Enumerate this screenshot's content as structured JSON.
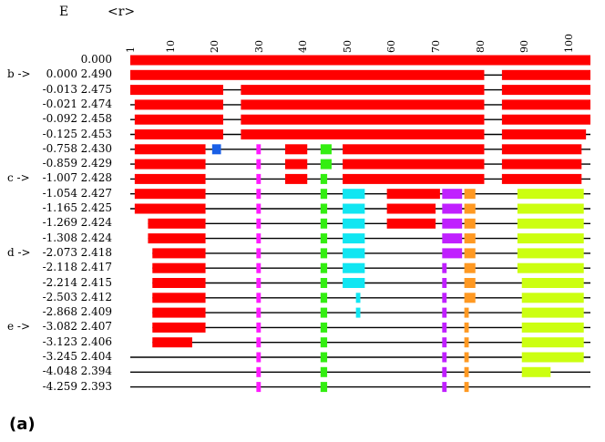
{
  "header": {
    "e_label": "E",
    "r_label": "<r>"
  },
  "axis": {
    "min": 1,
    "max": 105,
    "ticks": [
      1,
      10,
      20,
      30,
      40,
      50,
      60,
      70,
      80,
      90,
      100
    ]
  },
  "panel_label": "(a)",
  "colors": {
    "red": "#ff0000",
    "blue": "#1a5fe6",
    "magenta": "#ff1aff",
    "green": "#33ee11",
    "cyan": "#11e6f2",
    "purple": "#c020ff",
    "orange": "#ff9922",
    "lime": "#ccff11",
    "line": "#000000"
  },
  "rows": [
    {
      "marker": "",
      "energy": "",
      "r": "0.000",
      "line": [
        1,
        105
      ],
      "segs": [
        [
          1,
          105,
          "red"
        ]
      ]
    },
    {
      "marker": "b ->",
      "energy": "0.000",
      "r": "2.490",
      "line": [
        1,
        105
      ],
      "segs": [
        [
          1,
          81,
          "red"
        ],
        [
          85,
          105,
          "red"
        ]
      ]
    },
    {
      "marker": "",
      "energy": "-0.013",
      "r": "2.475",
      "line": [
        1,
        105
      ],
      "segs": [
        [
          1,
          22,
          "red"
        ],
        [
          26,
          81,
          "red"
        ],
        [
          85,
          105,
          "red"
        ]
      ]
    },
    {
      "marker": "",
      "energy": "-0.021",
      "r": "2.474",
      "line": [
        1,
        105
      ],
      "segs": [
        [
          2,
          22,
          "red"
        ],
        [
          26,
          81,
          "red"
        ],
        [
          85,
          105,
          "red"
        ]
      ]
    },
    {
      "marker": "",
      "energy": "-0.092",
      "r": "2.458",
      "line": [
        1,
        105
      ],
      "segs": [
        [
          2,
          22,
          "red"
        ],
        [
          26,
          81,
          "red"
        ],
        [
          85,
          105,
          "red"
        ]
      ]
    },
    {
      "marker": "",
      "energy": "-0.125",
      "r": "2.453",
      "line": [
        1,
        105
      ],
      "segs": [
        [
          2,
          22,
          "red"
        ],
        [
          26,
          81,
          "red"
        ],
        [
          85,
          104,
          "red"
        ]
      ]
    },
    {
      "marker": "",
      "energy": "-0.758",
      "r": "2.430",
      "line": [
        1,
        105
      ],
      "segs": [
        [
          2,
          18,
          "red"
        ],
        [
          19.5,
          21.5,
          "blue"
        ],
        [
          29.5,
          30.5,
          "magenta"
        ],
        [
          36,
          41,
          "red"
        ],
        [
          44,
          46.5,
          "green"
        ],
        [
          49,
          81,
          "red"
        ],
        [
          85,
          103,
          "red"
        ]
      ]
    },
    {
      "marker": "",
      "energy": "-0.859",
      "r": "2.429",
      "line": [
        1,
        105
      ],
      "segs": [
        [
          2,
          18,
          "red"
        ],
        [
          29.5,
          30.5,
          "magenta"
        ],
        [
          36,
          41,
          "red"
        ],
        [
          44,
          46.5,
          "green"
        ],
        [
          49,
          81,
          "red"
        ],
        [
          85,
          103,
          "red"
        ]
      ]
    },
    {
      "marker": "c ->",
      "energy": "-1.007",
      "r": "2.428",
      "line": [
        1,
        105
      ],
      "segs": [
        [
          2,
          18,
          "red"
        ],
        [
          29.5,
          30.5,
          "magenta"
        ],
        [
          36,
          41,
          "red"
        ],
        [
          44,
          45.5,
          "green"
        ],
        [
          49,
          81,
          "red"
        ],
        [
          85,
          103,
          "red"
        ]
      ]
    },
    {
      "marker": "",
      "energy": "-1.054",
      "r": "2.427",
      "line": [
        1,
        105
      ],
      "segs": [
        [
          2,
          18,
          "red"
        ],
        [
          29.5,
          30.5,
          "magenta"
        ],
        [
          44,
          45.5,
          "green"
        ],
        [
          49,
          54,
          "cyan"
        ],
        [
          59,
          71,
          "red"
        ],
        [
          71.5,
          76,
          "purple"
        ],
        [
          76.5,
          79,
          "orange"
        ],
        [
          88.5,
          103.5,
          "lime"
        ]
      ]
    },
    {
      "marker": "",
      "energy": "-1.165",
      "r": "2.425",
      "line": [
        1,
        105
      ],
      "segs": [
        [
          2,
          18,
          "red"
        ],
        [
          29.5,
          30.5,
          "magenta"
        ],
        [
          44,
          45.5,
          "green"
        ],
        [
          49,
          54,
          "cyan"
        ],
        [
          59,
          70,
          "red"
        ],
        [
          71.5,
          76,
          "purple"
        ],
        [
          76.5,
          79,
          "orange"
        ],
        [
          88.5,
          103.5,
          "lime"
        ]
      ]
    },
    {
      "marker": "",
      "energy": "-1.269",
      "r": "2.424",
      "line": [
        5,
        105
      ],
      "segs": [
        [
          5,
          18,
          "red"
        ],
        [
          29.5,
          30.5,
          "magenta"
        ],
        [
          44,
          45.5,
          "green"
        ],
        [
          49,
          54,
          "cyan"
        ],
        [
          59,
          70,
          "red"
        ],
        [
          71.5,
          76,
          "purple"
        ],
        [
          76.5,
          79,
          "orange"
        ],
        [
          88.5,
          103.5,
          "lime"
        ]
      ]
    },
    {
      "marker": "",
      "energy": "-1.308",
      "r": "2.424",
      "line": [
        5,
        105
      ],
      "segs": [
        [
          5,
          18,
          "red"
        ],
        [
          29.5,
          30.5,
          "magenta"
        ],
        [
          44,
          45.5,
          "green"
        ],
        [
          49,
          54,
          "cyan"
        ],
        [
          71.5,
          76,
          "purple"
        ],
        [
          76.5,
          79,
          "orange"
        ],
        [
          88.5,
          103.5,
          "lime"
        ]
      ]
    },
    {
      "marker": "d ->",
      "energy": "-2.073",
      "r": "2.418",
      "line": [
        6,
        105
      ],
      "segs": [
        [
          6,
          18,
          "red"
        ],
        [
          29.5,
          30.5,
          "magenta"
        ],
        [
          44,
          45.5,
          "green"
        ],
        [
          49,
          54,
          "cyan"
        ],
        [
          71.5,
          76,
          "purple"
        ],
        [
          76.5,
          79,
          "orange"
        ],
        [
          88.5,
          103.5,
          "lime"
        ]
      ]
    },
    {
      "marker": "",
      "energy": "-2.118",
      "r": "2.417",
      "line": [
        6,
        105
      ],
      "segs": [
        [
          6,
          18,
          "red"
        ],
        [
          29.5,
          30.5,
          "magenta"
        ],
        [
          44,
          45.5,
          "green"
        ],
        [
          49,
          54,
          "cyan"
        ],
        [
          71.5,
          72.5,
          "purple"
        ],
        [
          76.5,
          79,
          "orange"
        ],
        [
          88.5,
          103.5,
          "lime"
        ]
      ]
    },
    {
      "marker": "",
      "energy": "-2.214",
      "r": "2.415",
      "line": [
        6,
        105
      ],
      "segs": [
        [
          6,
          18,
          "red"
        ],
        [
          29.5,
          30.5,
          "magenta"
        ],
        [
          44,
          45.5,
          "green"
        ],
        [
          49,
          54,
          "cyan"
        ],
        [
          71.5,
          72.5,
          "purple"
        ],
        [
          76.5,
          79,
          "orange"
        ],
        [
          89.5,
          103.5,
          "lime"
        ]
      ]
    },
    {
      "marker": "",
      "energy": "-2.503",
      "r": "2.412",
      "line": [
        6,
        105
      ],
      "segs": [
        [
          6,
          18,
          "red"
        ],
        [
          29.5,
          30.5,
          "magenta"
        ],
        [
          44,
          45.5,
          "green"
        ],
        [
          52,
          53,
          "cyan"
        ],
        [
          71.5,
          72.5,
          "purple"
        ],
        [
          76.5,
          79,
          "orange"
        ],
        [
          89.5,
          103.5,
          "lime"
        ]
      ]
    },
    {
      "marker": "",
      "energy": "-2.868",
      "r": "2.409",
      "line": [
        6,
        105
      ],
      "segs": [
        [
          6,
          18,
          "red"
        ],
        [
          29.5,
          30.5,
          "magenta"
        ],
        [
          44,
          45.5,
          "green"
        ],
        [
          52,
          53,
          "cyan"
        ],
        [
          71.5,
          72.5,
          "purple"
        ],
        [
          76.5,
          77.5,
          "orange"
        ],
        [
          89.5,
          103.5,
          "lime"
        ]
      ]
    },
    {
      "marker": "e ->",
      "energy": "-3.082",
      "r": "2.407",
      "line": [
        6,
        105
      ],
      "segs": [
        [
          6,
          18,
          "red"
        ],
        [
          29.5,
          30.5,
          "magenta"
        ],
        [
          44,
          45.5,
          "green"
        ],
        [
          71.5,
          72.5,
          "purple"
        ],
        [
          76.5,
          77.5,
          "orange"
        ],
        [
          89.5,
          103.5,
          "lime"
        ]
      ]
    },
    {
      "marker": "",
      "energy": "-3.123",
      "r": "2.406",
      "line": [
        6,
        105
      ],
      "segs": [
        [
          6,
          15,
          "red"
        ],
        [
          29.5,
          30.5,
          "magenta"
        ],
        [
          44,
          45.5,
          "green"
        ],
        [
          71.5,
          72.5,
          "purple"
        ],
        [
          76.5,
          77.5,
          "orange"
        ],
        [
          89.5,
          103.5,
          "lime"
        ]
      ]
    },
    {
      "marker": "",
      "energy": "-3.245",
      "r": "2.404",
      "line": [
        1,
        105
      ],
      "segs": [
        [
          29.5,
          30.5,
          "magenta"
        ],
        [
          44,
          45.5,
          "green"
        ],
        [
          71.5,
          72.5,
          "purple"
        ],
        [
          76.5,
          77.5,
          "orange"
        ],
        [
          89.5,
          103.5,
          "lime"
        ]
      ]
    },
    {
      "marker": "",
      "energy": "-4.048",
      "r": "2.394",
      "line": [
        1,
        105
      ],
      "segs": [
        [
          29.5,
          30.5,
          "magenta"
        ],
        [
          44,
          45.5,
          "green"
        ],
        [
          71.5,
          72.5,
          "purple"
        ],
        [
          76.5,
          77.5,
          "orange"
        ],
        [
          89.5,
          96,
          "lime"
        ]
      ]
    },
    {
      "marker": "",
      "energy": "-4.259",
      "r": "2.393",
      "line": [
        1,
        105
      ],
      "segs": [
        [
          29.5,
          30.5,
          "magenta"
        ],
        [
          44,
          45.5,
          "green"
        ],
        [
          71.5,
          72.5,
          "purple"
        ],
        [
          76.5,
          77.5,
          "orange"
        ]
      ]
    }
  ]
}
